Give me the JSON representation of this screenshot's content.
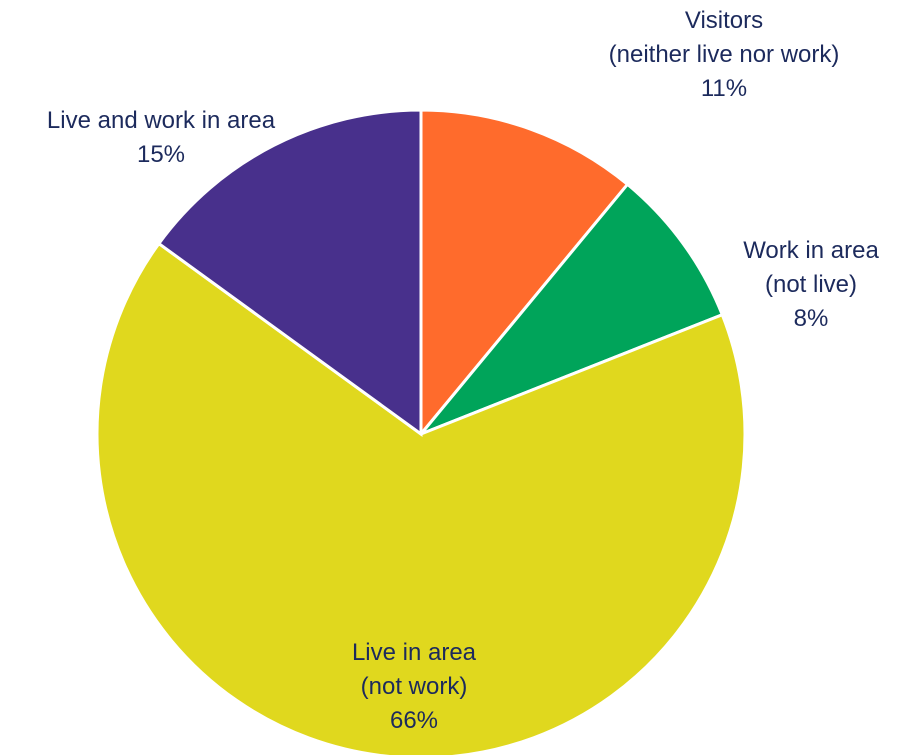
{
  "chart_data": {
    "type": "pie",
    "title": "",
    "slices": [
      {
        "name": "Visitors (neither live nor work)",
        "label_lines": [
          "Visitors",
          "(neither live nor work)"
        ],
        "value": 11,
        "value_label": "11%",
        "color": "#ff6b2c"
      },
      {
        "name": "Work in area (not live)",
        "label_lines": [
          "Work in area",
          "(not live)"
        ],
        "value": 8,
        "value_label": "8%",
        "color": "#00a45a"
      },
      {
        "name": "Live in area (not work)",
        "label_lines": [
          "Live in area",
          "(not work)"
        ],
        "value": 66,
        "value_label": "66%",
        "color": "#e0d81e"
      },
      {
        "name": "Live and work in area",
        "label_lines": [
          "Live and work in area"
        ],
        "value": 15,
        "value_label": "15%",
        "color": "#48308c"
      }
    ],
    "start_angle_deg": 0,
    "direction": "clockwise",
    "legend": "none",
    "label_color": "#1c2a5c"
  }
}
